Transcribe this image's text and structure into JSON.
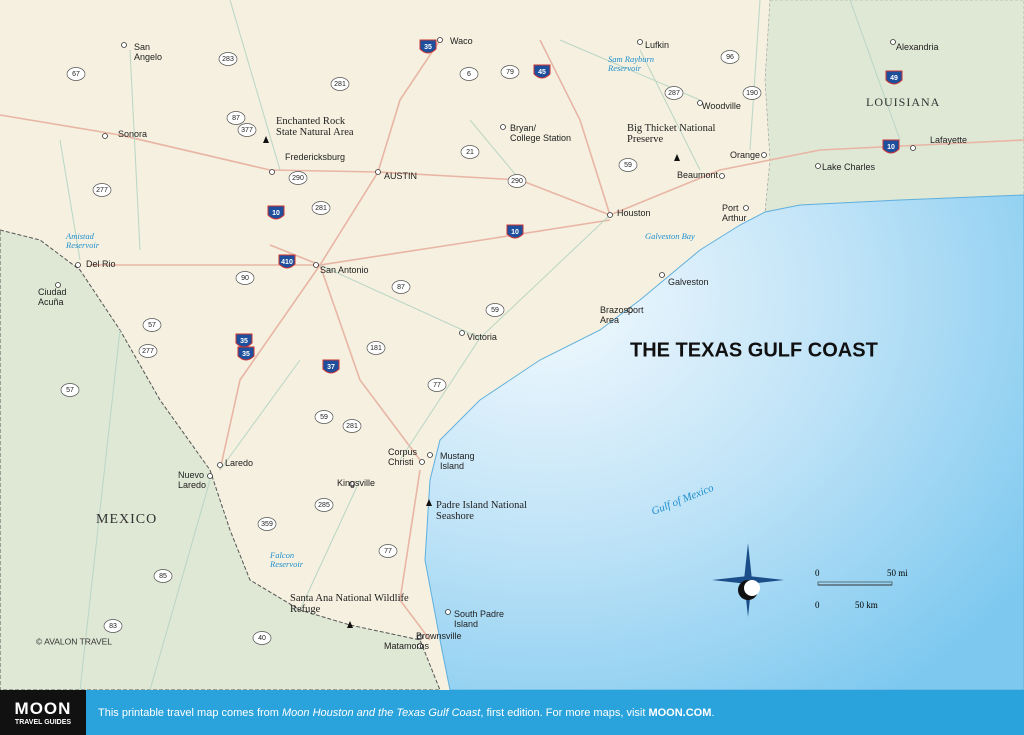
{
  "title": "THE TEXAS GULF COAST",
  "regions": [
    "LOUISIANA",
    "MEXICO"
  ],
  "cities": [
    [
      "San",
      "Angelo"
    ],
    [
      "Waco"
    ],
    [
      "Lufkin"
    ],
    [
      "Alexandria"
    ],
    [
      "Sonora"
    ],
    [
      "Bryan/",
      "College Station"
    ],
    [
      "Woodville"
    ],
    [
      "Fredericksburg"
    ],
    [
      "AUSTIN"
    ],
    [
      "Orange"
    ],
    [
      "Beaumont"
    ],
    [
      "Lake Charles"
    ],
    [
      "Lafayette"
    ],
    [
      "Port",
      "Arthur"
    ],
    [
      "Houston"
    ],
    [
      "Del Rio"
    ],
    [
      "San Antonio"
    ],
    [
      "Galveston"
    ],
    [
      "Ciudad",
      "Acuña"
    ],
    [
      "Victoria"
    ],
    [
      "Brazosport",
      "Area"
    ],
    [
      "Corpus",
      "Christi"
    ],
    [
      "Mustang",
      "Island"
    ],
    [
      "Laredo"
    ],
    [
      "Nuevo",
      "Laredo"
    ],
    [
      "Kingsville"
    ],
    [
      "South Padre",
      "Island"
    ],
    [
      "Brownsville"
    ],
    [
      "Matamoros"
    ]
  ],
  "parks": [
    [
      "Enchanted Rock",
      "State Natural Area"
    ],
    [
      "Big Thicket National",
      "Preserve"
    ],
    [
      "Padre Island National",
      "Seashore"
    ],
    [
      "Santa Ana National Wildlife",
      "Refuge"
    ]
  ],
  "water": [
    [
      "Sam Rayburn",
      "Reservoir"
    ],
    [
      "Amistad",
      "Reservoir"
    ],
    [
      "Galveston Bay"
    ],
    [
      "Falcon",
      "Reservoir"
    ]
  ],
  "gulf": "Gulf   of   Mexico",
  "highways": [
    "283",
    "87",
    "377",
    "281",
    "35",
    "6",
    "79",
    "45",
    "96",
    "287",
    "190",
    "49",
    "10",
    "67",
    "277",
    "290",
    "21",
    "59",
    "290",
    "281",
    "10",
    "10",
    "410",
    "90",
    "87",
    "59",
    "35",
    "57",
    "277",
    "35",
    "37",
    "181",
    "77",
    "59",
    "281",
    "57",
    "359",
    "285",
    "77",
    "85",
    "83",
    "40"
  ],
  "scale": {
    "mi_zero": "0",
    "mi": "50 mi",
    "km_zero": "0",
    "km": "50 km"
  },
  "copyright": "© AVALON TRAVEL",
  "footer": {
    "brand": "MOON",
    "brand_sub": "TRAVEL GUIDES",
    "text_start": "This printable travel map comes from ",
    "book": "Moon Houston and the Texas Gulf Coast",
    "text_mid": ", first edition. For more maps, visit ",
    "link": "MOON.COM",
    "text_end": "."
  }
}
